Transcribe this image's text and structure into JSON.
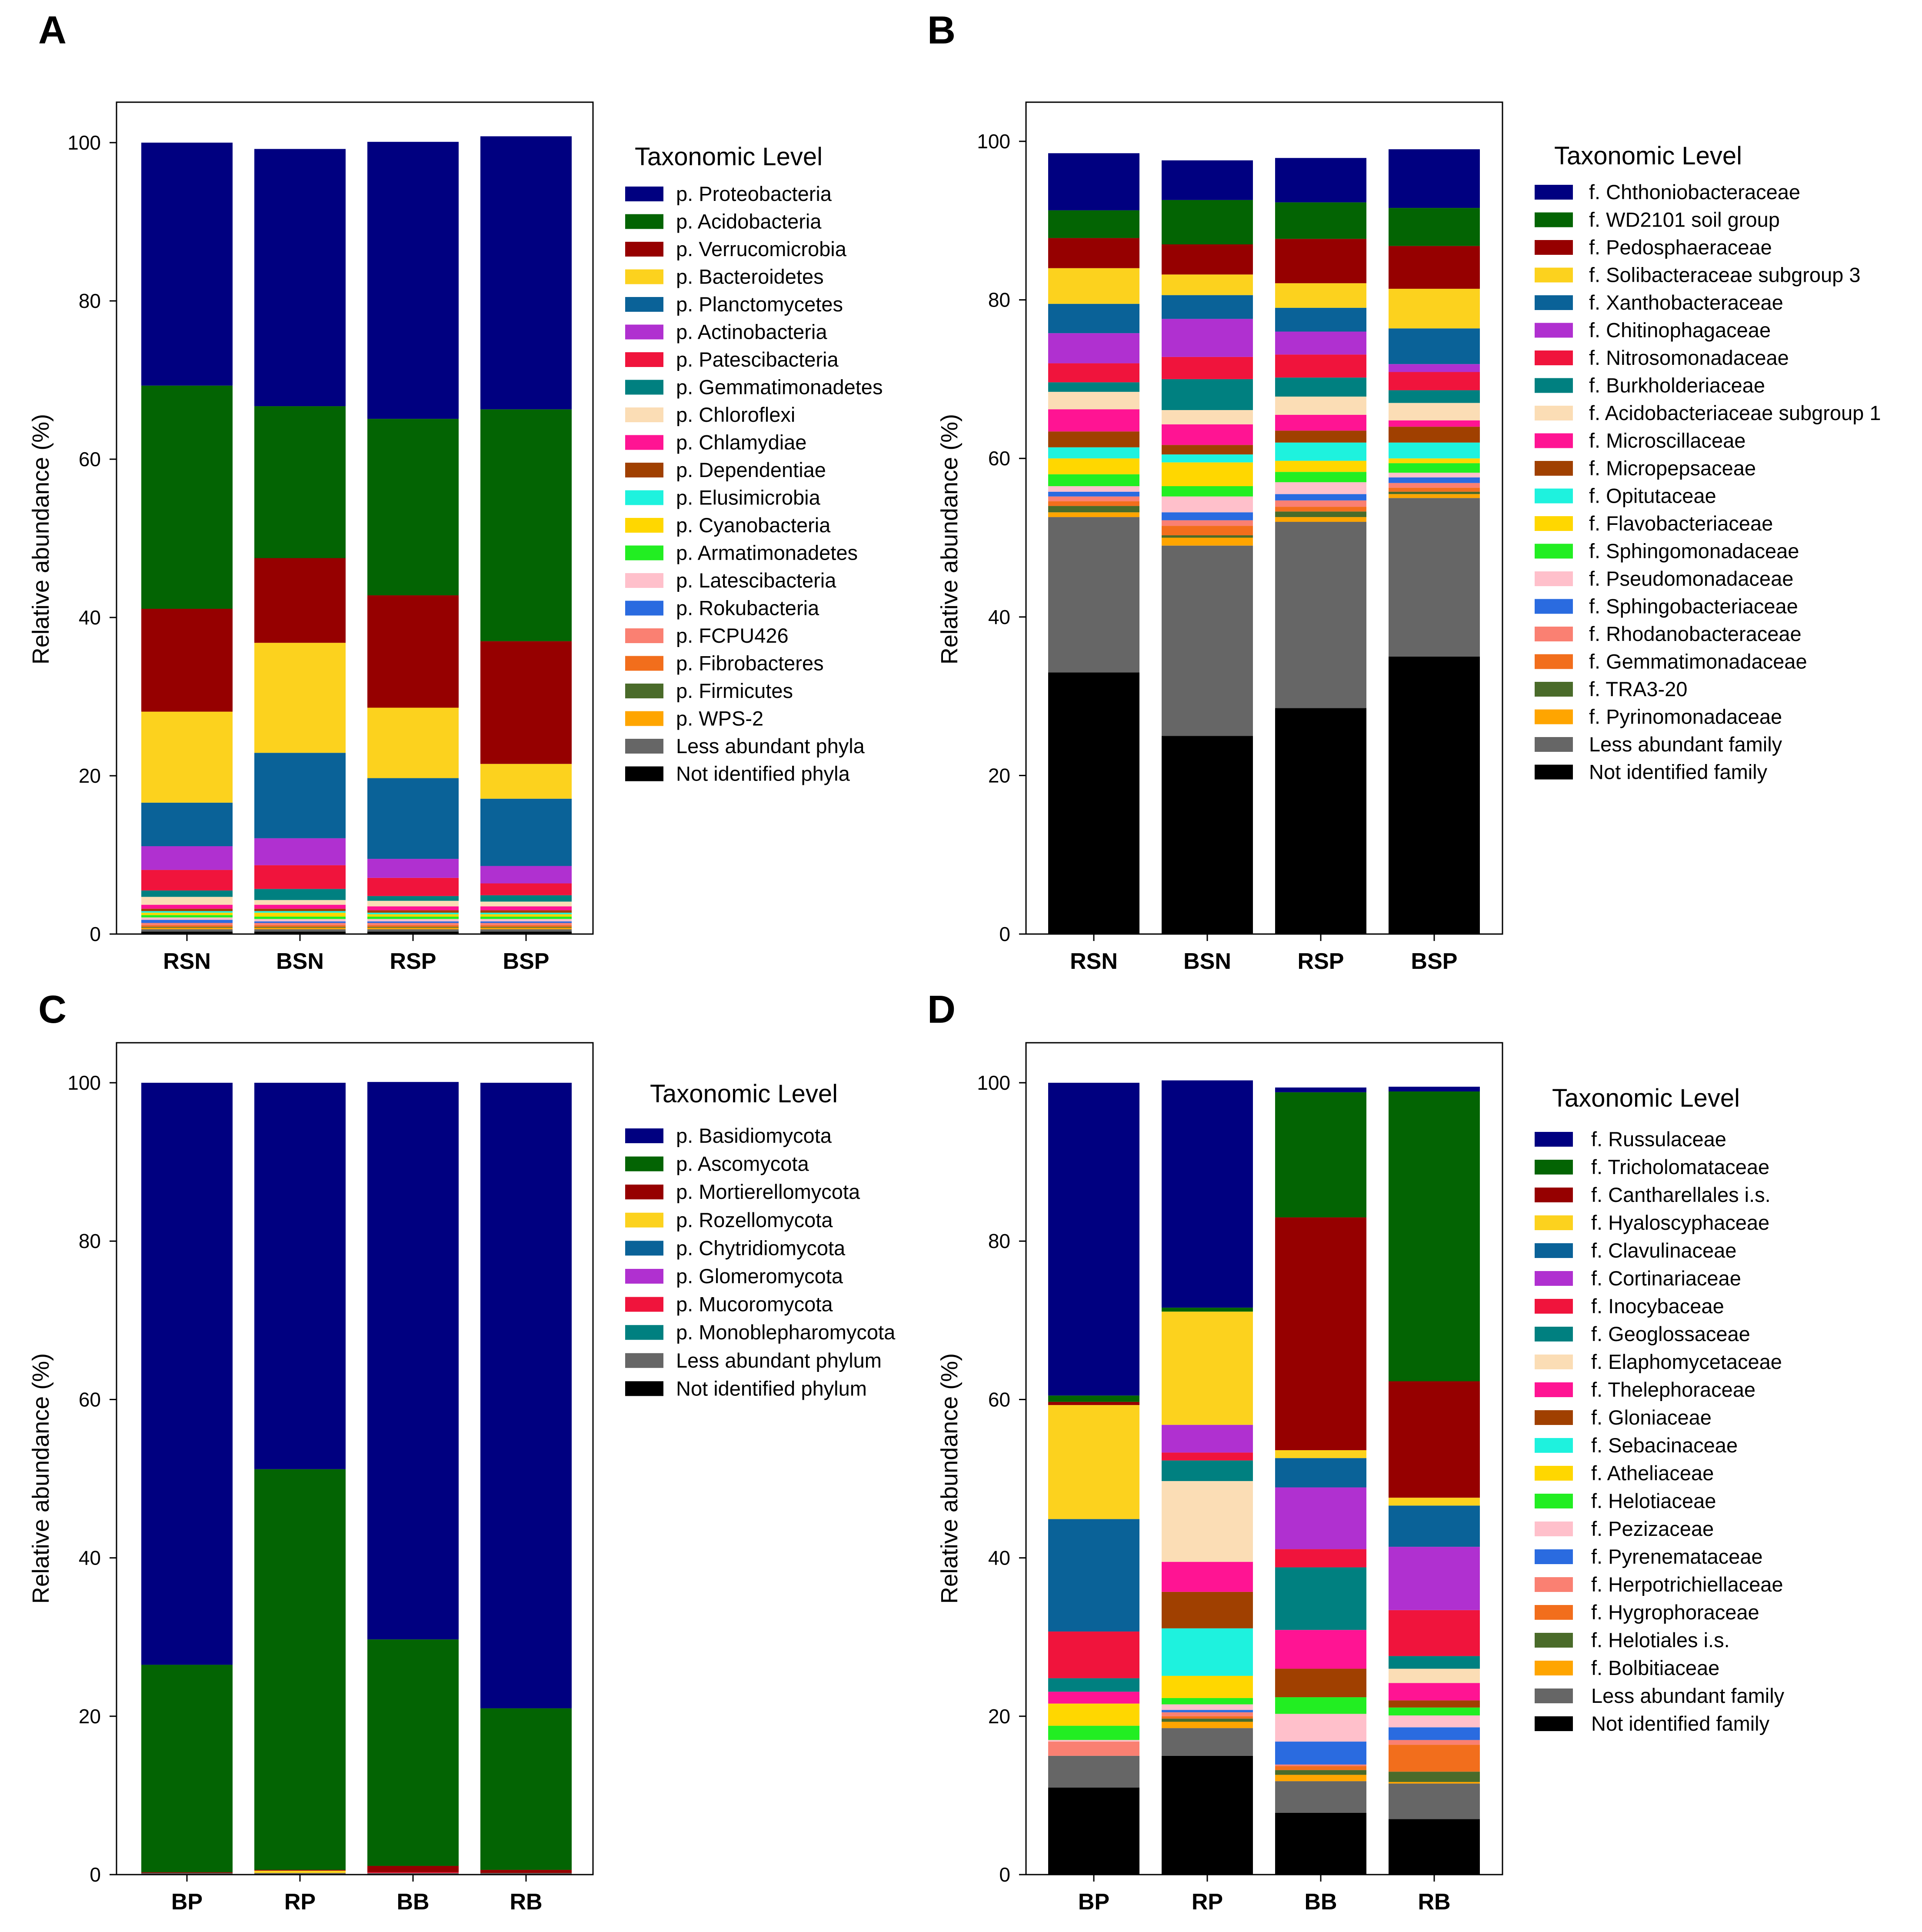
{
  "chart_data": [
    {
      "panel": "A",
      "type": "stacked-bar",
      "ylabel": "Relative abundance (%)",
      "ylim": [
        0,
        100
      ],
      "yticks": [
        "0",
        "20",
        "40",
        "60",
        "80",
        "100"
      ],
      "categories": [
        "RSN",
        "BSN",
        "RSP",
        "BSP"
      ],
      "legend_title": "Taxonomic Level",
      "series": [
        {
          "name": "Not identified phyla",
          "color": "#000000",
          "values": [
            0.3,
            0.3,
            0.3,
            0.3
          ]
        },
        {
          "name": "Less abundant phyla",
          "color": "#666666",
          "values": [
            0.3,
            0.3,
            0.3,
            0.3
          ]
        },
        {
          "name": "p. WPS-2",
          "color": "#FFA500",
          "values": [
            0.2,
            0.2,
            0.2,
            0.2
          ]
        },
        {
          "name": "p. Firmicutes",
          "color": "#4A6B2A",
          "values": [
            0.1,
            0.1,
            0.1,
            0.1
          ]
        },
        {
          "name": "p. Fibrobacteres",
          "color": "#F26E1C",
          "values": [
            0.2,
            0.2,
            0.2,
            0.2
          ]
        },
        {
          "name": "p. FCPU426",
          "color": "#FA8072",
          "values": [
            0.3,
            0.3,
            0.3,
            0.3
          ]
        },
        {
          "name": "p. Rokubacteria",
          "color": "#2A6BE0",
          "values": [
            0.4,
            0.2,
            0.2,
            0.2
          ]
        },
        {
          "name": "p. Latescibacteria",
          "color": "#FFC0CB",
          "values": [
            0.3,
            0.3,
            0.3,
            0.3
          ]
        },
        {
          "name": "p. Armatimonadetes",
          "color": "#22EE22",
          "values": [
            0.3,
            0.3,
            0.3,
            0.3
          ]
        },
        {
          "name": "p. Cyanobacteria",
          "color": "#FFD700",
          "values": [
            0.3,
            0.5,
            0.3,
            0.3
          ]
        },
        {
          "name": "p. Elusimicrobia",
          "color": "#1EF2DE",
          "values": [
            0.2,
            0.2,
            0.2,
            0.2
          ]
        },
        {
          "name": "p. Dependentiae",
          "color": "#A04000",
          "values": [
            0.3,
            0.3,
            0.3,
            0.3
          ]
        },
        {
          "name": "p. Chlamydiae",
          "color": "#FF1493",
          "values": [
            0.5,
            0.5,
            0.5,
            0.5
          ]
        },
        {
          "name": "p. Chloroflexi",
          "color": "#FBDDB5",
          "values": [
            1.0,
            0.6,
            0.7,
            0.6
          ]
        },
        {
          "name": "p. Gemmatimonadetes",
          "color": "#008080",
          "values": [
            0.8,
            1.4,
            0.6,
            0.8
          ]
        },
        {
          "name": "p. Patescibacteria",
          "color": "#F0143C",
          "values": [
            2.6,
            3.0,
            2.3,
            1.5
          ]
        },
        {
          "name": "p. Actinobacteria",
          "color": "#B030D0",
          "values": [
            3.0,
            3.4,
            2.4,
            2.2
          ]
        },
        {
          "name": "p. Planctomycetes",
          "color": "#0A6298",
          "values": [
            5.5,
            10.8,
            10.2,
            8.5
          ]
        },
        {
          "name": "p. Bacteroidetes",
          "color": "#FCD21E",
          "values": [
            11.5,
            13.9,
            8.9,
            4.4
          ]
        },
        {
          "name": "p. Verrucomicrobia",
          "color": "#960000",
          "values": [
            13.0,
            10.7,
            14.2,
            15.5
          ]
        },
        {
          "name": "p. Acidobacteria",
          "color": "#036403",
          "values": [
            28.2,
            19.2,
            22.3,
            29.3
          ]
        },
        {
          "name": "p. Proteobacteria",
          "color": "#000080",
          "values": [
            30.7,
            32.5,
            35.0,
            34.5
          ]
        }
      ]
    },
    {
      "panel": "B",
      "type": "stacked-bar",
      "ylabel": "Relative abundance (%)",
      "ylim": [
        0,
        100
      ],
      "yticks": [
        "0",
        "20",
        "40",
        "60",
        "80",
        "100"
      ],
      "categories": [
        "RSN",
        "BSN",
        "RSP",
        "BSP"
      ],
      "legend_title": "Taxonomic Level",
      "series": [
        {
          "name": "Not identified family",
          "color": "#000000",
          "values": [
            33.0,
            25.0,
            28.5,
            35.0
          ]
        },
        {
          "name": "Less abundant family",
          "color": "#666666",
          "values": [
            19.6,
            24.0,
            23.5,
            20.0
          ]
        },
        {
          "name": "f. Pyrinomonadaceae",
          "color": "#FFA500",
          "values": [
            0.6,
            1.0,
            0.6,
            0.5
          ]
        },
        {
          "name": "f. TRA3-20",
          "color": "#4A6B2A",
          "values": [
            0.8,
            0.3,
            0.7,
            0.3
          ]
        },
        {
          "name": "f. Gemmatimonadaceae",
          "color": "#F26E1C",
          "values": [
            0.6,
            1.2,
            0.6,
            0.5
          ]
        },
        {
          "name": "f. Rhodanobacteraceae",
          "color": "#FA8072",
          "values": [
            0.6,
            0.7,
            0.8,
            0.6
          ]
        },
        {
          "name": "f. Sphingobacteriaceae",
          "color": "#2A6BE0",
          "values": [
            0.6,
            1.0,
            0.8,
            0.7
          ]
        },
        {
          "name": "f. Pseudomonadaceae",
          "color": "#FFC0CB",
          "values": [
            0.7,
            2.0,
            1.5,
            0.6
          ]
        },
        {
          "name": "f. Sphingomonadaceae",
          "color": "#22EE22",
          "values": [
            1.5,
            1.3,
            1.3,
            1.2
          ]
        },
        {
          "name": "f. Flavobacteriaceae",
          "color": "#FFD700",
          "values": [
            2.0,
            3.0,
            1.4,
            0.6
          ]
        },
        {
          "name": "f. Opitutaceae",
          "color": "#1EF2DE",
          "values": [
            1.4,
            1.0,
            2.3,
            2.0
          ]
        },
        {
          "name": "f. Micropepsaceae",
          "color": "#A04000",
          "values": [
            2.0,
            1.2,
            1.5,
            2.0
          ]
        },
        {
          "name": "f. Microscillaceae",
          "color": "#FF1493",
          "values": [
            2.8,
            2.6,
            2.0,
            0.8
          ]
        },
        {
          "name": "f. Acidobacteriaceae subgroup 1",
          "color": "#FBDDB5",
          "values": [
            2.2,
            1.8,
            2.3,
            2.2
          ]
        },
        {
          "name": "f. Burkholderiaceae",
          "color": "#008080",
          "values": [
            1.2,
            3.9,
            2.4,
            1.6
          ]
        },
        {
          "name": "f. Nitrosomonadaceae",
          "color": "#F0143C",
          "values": [
            2.4,
            2.8,
            2.9,
            2.3
          ]
        },
        {
          "name": "f. Chitinophagaceae",
          "color": "#B030D0",
          "values": [
            3.8,
            4.8,
            2.9,
            1.0
          ]
        },
        {
          "name": "f. Xanthobacteraceae",
          "color": "#0A6298",
          "values": [
            3.7,
            3.0,
            3.0,
            4.5
          ]
        },
        {
          "name": "f. Solibacteraceae subgroup 3",
          "color": "#FCD21E",
          "values": [
            4.5,
            2.6,
            3.1,
            5.0
          ]
        },
        {
          "name": "f. Pedosphaeraceae",
          "color": "#960000",
          "values": [
            3.8,
            3.8,
            5.6,
            5.4
          ]
        },
        {
          "name": "f. WD2101 soil group",
          "color": "#036403",
          "values": [
            3.5,
            5.6,
            4.6,
            4.8
          ]
        },
        {
          "name": "f. Chthoniobacteraceae",
          "color": "#000080",
          "values": [
            7.2,
            5.0,
            5.6,
            7.4
          ]
        }
      ]
    },
    {
      "panel": "C",
      "type": "stacked-bar",
      "ylabel": "Relative abundance (%)",
      "ylim": [
        0,
        100
      ],
      "yticks": [
        "0",
        "20",
        "40",
        "60",
        "80",
        "100"
      ],
      "categories": [
        "BP",
        "RP",
        "BB",
        "RB"
      ],
      "legend_title": "Taxonomic Level",
      "series": [
        {
          "name": "Not identified phylum",
          "color": "#000000",
          "values": [
            0.1,
            0.1,
            0.1,
            0.1
          ]
        },
        {
          "name": "Less abundant phylum",
          "color": "#666666",
          "values": [
            0.1,
            0.1,
            0.1,
            0.1
          ]
        },
        {
          "name": "p. Monoblepharomycota",
          "color": "#008080",
          "values": [
            0.0,
            0.0,
            0.0,
            0.0
          ]
        },
        {
          "name": "p. Mucoromycota",
          "color": "#F0143C",
          "values": [
            0.0,
            0.0,
            0.1,
            0.0
          ]
        },
        {
          "name": "p. Glomeromycota",
          "color": "#B030D0",
          "values": [
            0.0,
            0.0,
            0.0,
            0.0
          ]
        },
        {
          "name": "p. Chytridiomycota",
          "color": "#0A6298",
          "values": [
            0.0,
            0.0,
            0.0,
            0.0
          ]
        },
        {
          "name": "p. Rozellomycota",
          "color": "#FCD21E",
          "values": [
            0.0,
            0.3,
            0.0,
            0.0
          ]
        },
        {
          "name": "p. Mortierellomycota",
          "color": "#960000",
          "values": [
            0.1,
            0.1,
            0.8,
            0.4
          ]
        },
        {
          "name": "p. Ascomycota",
          "color": "#036403",
          "values": [
            26.2,
            50.6,
            28.6,
            20.4
          ]
        },
        {
          "name": "p. Basidiomycota",
          "color": "#000080",
          "values": [
            73.5,
            48.8,
            70.4,
            79.0
          ]
        }
      ]
    },
    {
      "panel": "D",
      "type": "stacked-bar",
      "ylabel": "Relative abundance (%)",
      "ylim": [
        0,
        100
      ],
      "yticks": [
        "0",
        "20",
        "40",
        "60",
        "80",
        "100"
      ],
      "categories": [
        "BP",
        "RP",
        "BB",
        "RB"
      ],
      "legend_title": "Taxonomic Level",
      "series": [
        {
          "name": "Not identified family",
          "color": "#000000",
          "values": [
            11.0,
            15.0,
            7.8,
            7.0
          ]
        },
        {
          "name": "Less abundant family",
          "color": "#666666",
          "values": [
            4.0,
            3.5,
            4.0,
            4.5
          ]
        },
        {
          "name": "f. Bolbitiaceae",
          "color": "#FFA500",
          "values": [
            0.0,
            0.8,
            0.8,
            0.2
          ]
        },
        {
          "name": "f. Helotiales i.s.",
          "color": "#4A6B2A",
          "values": [
            0.0,
            0.4,
            0.6,
            1.3
          ]
        },
        {
          "name": "f. Hygrophoraceae",
          "color": "#F26E1C",
          "values": [
            0.0,
            0.3,
            0.5,
            3.4
          ]
        },
        {
          "name": "f. Herpotrichiellaceae",
          "color": "#FA8072",
          "values": [
            1.8,
            0.5,
            0.2,
            0.6
          ]
        },
        {
          "name": "f. Pyrenemataceae",
          "color": "#2A6BE0",
          "values": [
            0.0,
            0.3,
            2.9,
            1.6
          ]
        },
        {
          "name": "f. Pezizaceae",
          "color": "#FFC0CB",
          "values": [
            0.2,
            0.7,
            3.5,
            1.5
          ]
        },
        {
          "name": "f. Helotiaceae",
          "color": "#22EE22",
          "values": [
            1.8,
            0.8,
            2.1,
            1.0
          ]
        },
        {
          "name": "f. Atheliaceae",
          "color": "#FFD700",
          "values": [
            2.8,
            2.8,
            0.0,
            0.0
          ]
        },
        {
          "name": "f. Sebacinaceae",
          "color": "#1EF2DE",
          "values": [
            0.0,
            6.0,
            0.0,
            0.0
          ]
        },
        {
          "name": "f. Gloniaceae",
          "color": "#A04000",
          "values": [
            0.0,
            4.6,
            3.6,
            0.9
          ]
        },
        {
          "name": "f. Thelephoraceae",
          "color": "#FF1493",
          "values": [
            1.5,
            3.8,
            4.9,
            2.2
          ]
        },
        {
          "name": "f. Elaphomycetaceae",
          "color": "#FBDDB5",
          "values": [
            0.0,
            10.2,
            0.0,
            1.8
          ]
        },
        {
          "name": "f. Geoglossaceae",
          "color": "#008080",
          "values": [
            1.7,
            2.6,
            7.9,
            1.6
          ]
        },
        {
          "name": "f. Inocybaceae",
          "color": "#F0143C",
          "values": [
            5.9,
            1.0,
            2.3,
            5.8
          ]
        },
        {
          "name": "f. Cortinariaceae",
          "color": "#B030D0",
          "values": [
            0.0,
            3.5,
            7.8,
            8.0
          ]
        },
        {
          "name": "f. Clavulinaceae",
          "color": "#0A6298",
          "values": [
            14.2,
            0.0,
            3.7,
            5.2
          ]
        },
        {
          "name": "f. Hyaloscyphaceae",
          "color": "#FCD21E",
          "values": [
            14.4,
            14.3,
            1.0,
            1.0
          ]
        },
        {
          "name": "f. Cantharellales i.s.",
          "color": "#960000",
          "values": [
            0.4,
            0.0,
            29.4,
            14.7
          ]
        },
        {
          "name": "f. Tricholomataceae",
          "color": "#036403",
          "values": [
            0.8,
            0.5,
            15.8,
            36.6
          ]
        },
        {
          "name": "f. Russulaceae",
          "color": "#000080",
          "values": [
            39.5,
            28.7,
            0.6,
            0.6
          ]
        }
      ]
    }
  ]
}
